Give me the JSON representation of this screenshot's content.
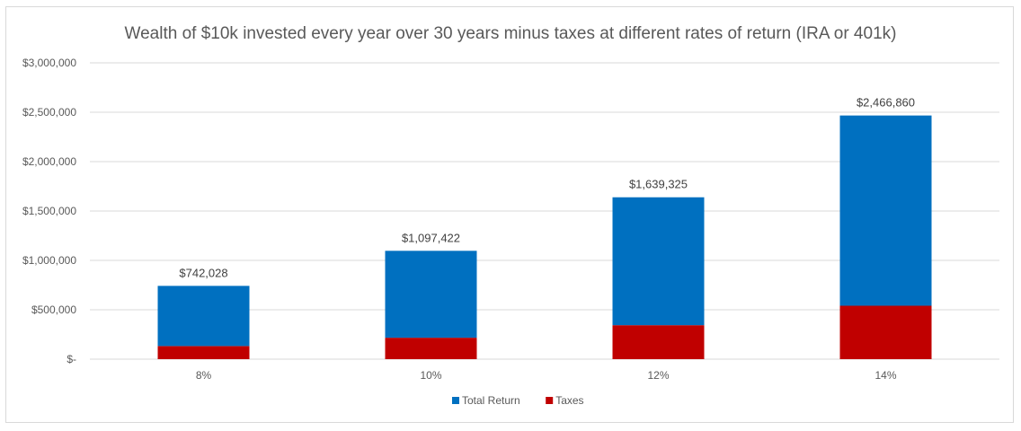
{
  "chart_data": {
    "type": "bar",
    "stacked": true,
    "title": "Wealth of $10k invested every year over 30 years minus taxes at different rates of return (IRA or 401k)",
    "xlabel": "",
    "ylabel": "",
    "categories": [
      "8%",
      "10%",
      "12%",
      "14%"
    ],
    "totals": [
      742028,
      1097422,
      1639325,
      2466860
    ],
    "total_labels": [
      "$742,028",
      "$1,097,422",
      "$1,639,325",
      "$2,466,860"
    ],
    "series": [
      {
        "name": "Total Return",
        "color": "#0070c0",
        "values": [
          609000,
          880000,
          1295000,
          1926000
        ]
      },
      {
        "name": "Taxes",
        "color": "#c00000",
        "values": [
          133000,
          217000,
          344000,
          541000
        ]
      }
    ],
    "ylim": [
      0,
      3000000
    ],
    "yticks": [
      0,
      500000,
      1000000,
      1500000,
      2000000,
      2500000,
      3000000
    ],
    "ytick_labels": [
      "$-",
      "$500,000",
      "$1,000,000",
      "$1,500,000",
      "$2,000,000",
      "$2,500,000",
      "$3,000,000"
    ],
    "grid": true,
    "legend_position": "bottom",
    "colors": {
      "total_return": "#0070c0",
      "taxes": "#c00000",
      "grid": "#d9d9d9"
    }
  }
}
